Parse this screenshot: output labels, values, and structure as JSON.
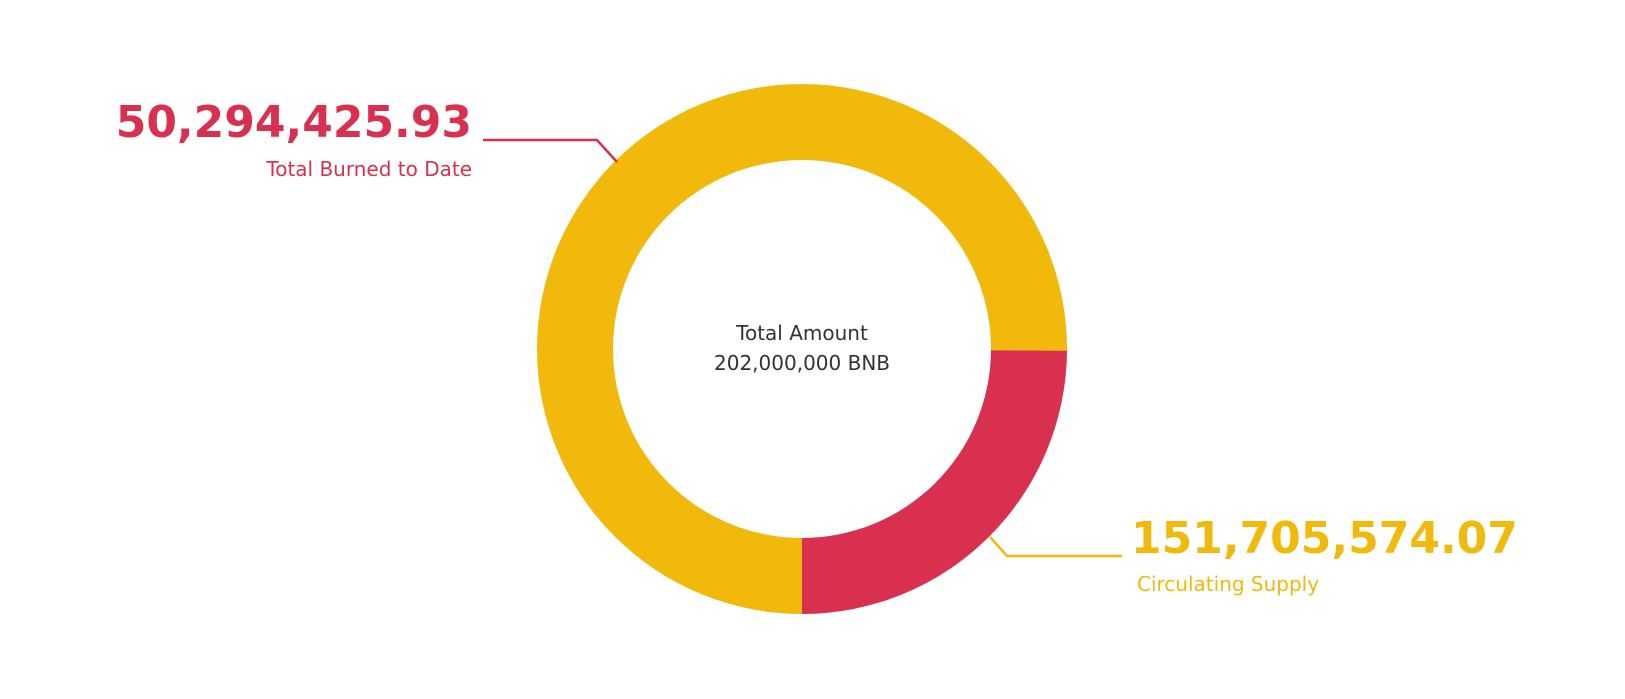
{
  "chart_data": {
    "type": "pie",
    "center_label": {
      "title": "Total Amount",
      "value": "202,000,000 BNB"
    },
    "total": 202000000,
    "slices": [
      {
        "key": "circulating",
        "name": "Circulating Supply",
        "value": 151705574.07,
        "display_value": "151,705,574.07",
        "color": "#F0B90B"
      },
      {
        "key": "burned",
        "name": "Total Burned to Date",
        "value": 50294425.93,
        "display_value": "50,294,425.93",
        "color": "#D9304F"
      }
    ]
  }
}
